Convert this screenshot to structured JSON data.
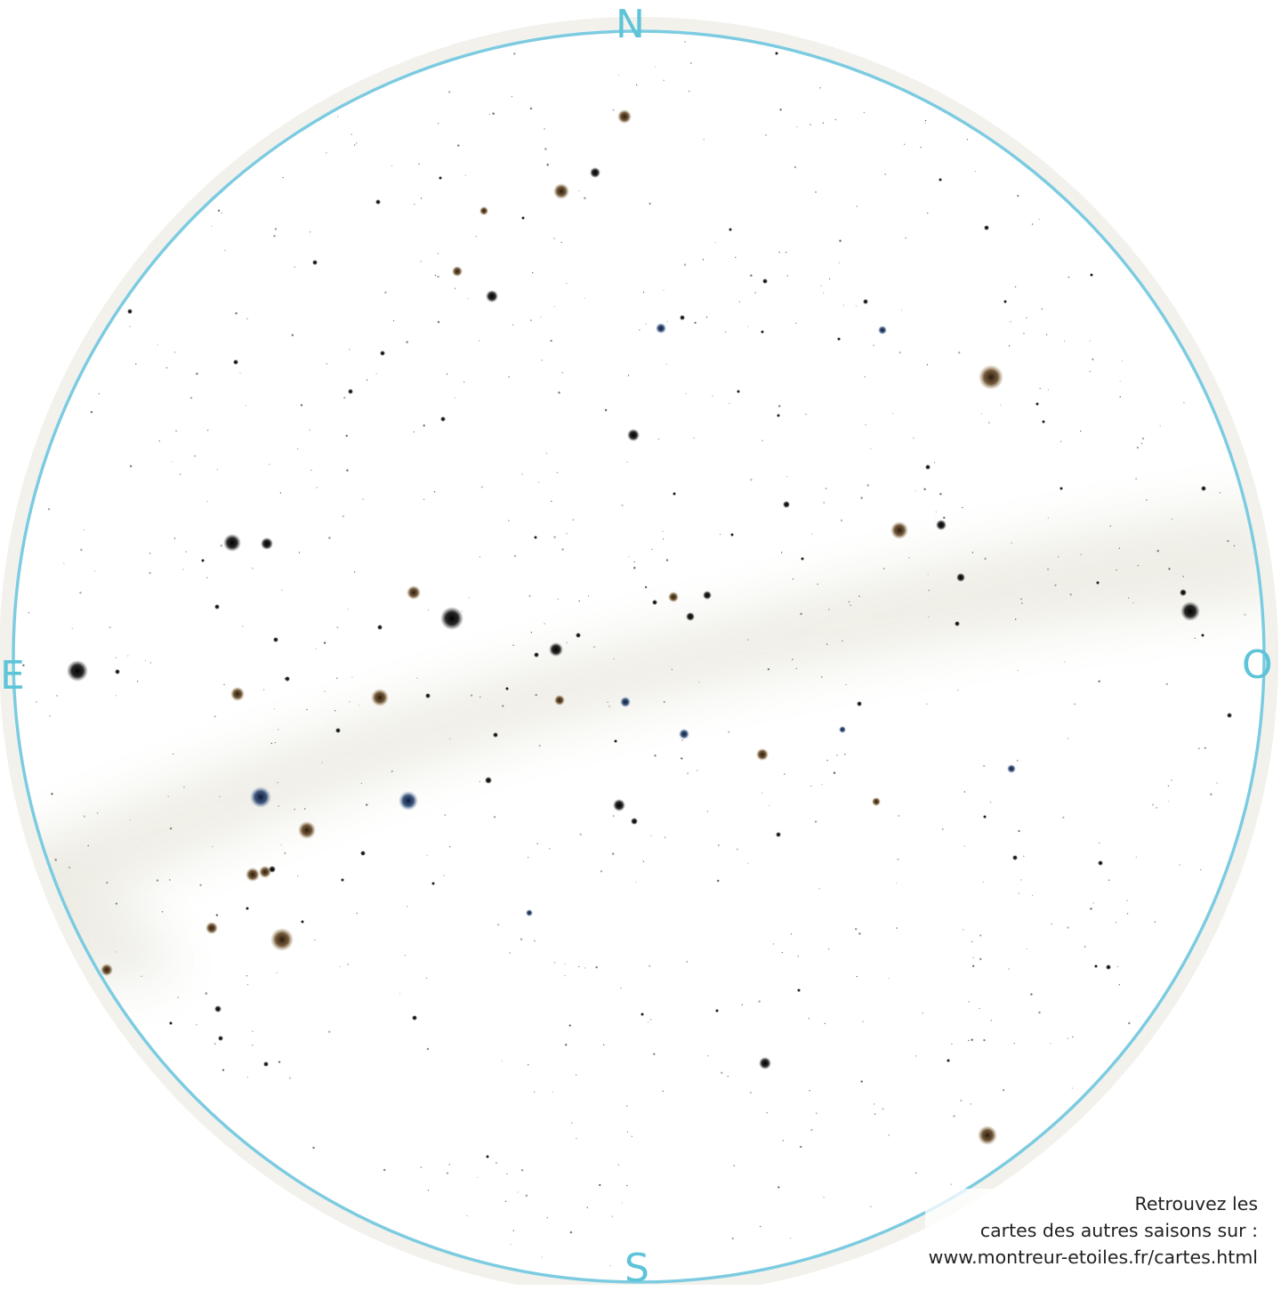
{
  "map": {
    "cardinals": {
      "north": "N",
      "south": "S",
      "east": "E",
      "west": "O"
    },
    "horizon_color": "#7ccbe0",
    "credit": {
      "line1": "Retrouvez les",
      "line2": "cartes des autres saisons sur :",
      "line3": "www.montreur-etoiles.fr/cartes.html"
    },
    "star_colors": {
      "white": "#1a1a1a",
      "orange": "#5a3c1a",
      "blue": "#1e3a66"
    }
  }
}
